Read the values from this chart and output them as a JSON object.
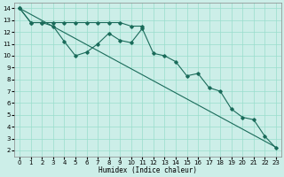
{
  "xlabel": "Humidex (Indice chaleur)",
  "background_color": "#cceee8",
  "grid_color": "#99ddcc",
  "line_color": "#1a6b5a",
  "xlim": [
    -0.5,
    23.5
  ],
  "ylim": [
    1.5,
    14.5
  ],
  "yticks": [
    2,
    3,
    4,
    5,
    6,
    7,
    8,
    9,
    10,
    11,
    12,
    13,
    14
  ],
  "xticks": [
    0,
    1,
    2,
    3,
    4,
    5,
    6,
    7,
    8,
    9,
    10,
    11,
    12,
    13,
    14,
    15,
    16,
    17,
    18,
    19,
    20,
    21,
    22,
    23
  ],
  "line_a_x": [
    0,
    1,
    2,
    3,
    4,
    5,
    6,
    7,
    8,
    9,
    10,
    11,
    12,
    13,
    14,
    15,
    16,
    17,
    18,
    19,
    20,
    21,
    22,
    23
  ],
  "line_a_y": [
    14.0,
    13.49,
    12.98,
    12.47,
    11.96,
    11.45,
    10.94,
    10.43,
    9.92,
    9.41,
    8.9,
    8.39,
    7.88,
    7.37,
    6.86,
    6.35,
    5.84,
    5.33,
    4.82,
    4.31,
    3.8,
    3.29,
    2.78,
    2.27
  ],
  "line_b_x": [
    0,
    1,
    2,
    3,
    4,
    5,
    6,
    7,
    8,
    9,
    10,
    11,
    12,
    13,
    14,
    15,
    16,
    17,
    18,
    19,
    20,
    21,
    22,
    23
  ],
  "line_b_y": [
    14.0,
    12.8,
    12.8,
    12.5,
    11.2,
    10.0,
    10.3,
    11.0,
    11.9,
    11.3,
    11.1,
    12.3,
    10.2,
    10.0,
    9.5,
    8.3,
    8.5,
    7.3,
    7.0,
    5.5,
    4.8,
    4.6,
    3.2,
    2.2
  ],
  "line_c_x": [
    0,
    1,
    2,
    3,
    4,
    5,
    6,
    7,
    8,
    9,
    10,
    11
  ],
  "line_c_y": [
    14.0,
    12.8,
    12.8,
    12.8,
    12.8,
    12.8,
    12.8,
    12.8,
    12.8,
    12.8,
    12.5,
    12.5
  ],
  "tick_fontsize": 5,
  "xlabel_fontsize": 5.5
}
